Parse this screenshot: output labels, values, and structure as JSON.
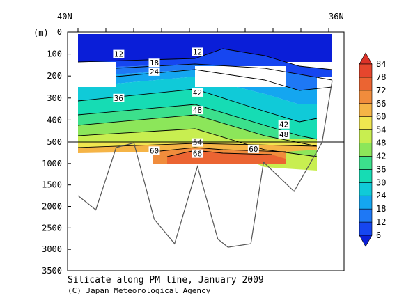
{
  "chart_data": {
    "type": "heatmap",
    "title": "Silicate along PM line, January 2009",
    "credit": "(C) Japan Meteorological Agency",
    "ylabel": "(m)",
    "x_ticks": [
      "40N",
      "36N"
    ],
    "y_ticks_upper": [
      "0",
      "100",
      "200",
      "300",
      "400",
      "500"
    ],
    "y_ticks_lower": [
      "1000",
      "1500",
      "2000",
      "2500",
      "3000",
      "3500"
    ],
    "ylim_upper": [
      0,
      500
    ],
    "ylim_lower": [
      500,
      3500
    ],
    "colorbar": {
      "levels": [
        6,
        12,
        18,
        24,
        30,
        36,
        42,
        48,
        54,
        60,
        66,
        72,
        78,
        84
      ],
      "colors": [
        "#0a1ed8",
        "#1646f0",
        "#1e78f5",
        "#14a6f0",
        "#10cad8",
        "#16dcb4",
        "#3ce08c",
        "#8ce65a",
        "#c8ee50",
        "#f0e650",
        "#f5b446",
        "#f08c3c",
        "#eb6432",
        "#e6462d",
        "#dc3228"
      ]
    },
    "contour_labels": [
      {
        "text": "12",
        "x_frac": 0.16,
        "depth": 100
      },
      {
        "text": "12",
        "x_frac": 0.47,
        "depth": 90
      },
      {
        "text": "18",
        "x_frac": 0.3,
        "depth": 140
      },
      {
        "text": "24",
        "x_frac": 0.3,
        "depth": 180
      },
      {
        "text": "36",
        "x_frac": 0.16,
        "depth": 300
      },
      {
        "text": "42",
        "x_frac": 0.47,
        "depth": 275
      },
      {
        "text": "48",
        "x_frac": 0.47,
        "depth": 355
      },
      {
        "text": "42",
        "x_frac": 0.81,
        "depth": 420
      },
      {
        "text": "48",
        "x_frac": 0.81,
        "depth": 465
      },
      {
        "text": "54",
        "x_frac": 0.47,
        "depth": 510
      },
      {
        "text": "60",
        "x_frac": 0.3,
        "depth": 700
      },
      {
        "text": "66",
        "x_frac": 0.47,
        "depth": 770
      },
      {
        "text": "60",
        "x_frac": 0.69,
        "depth": 660
      }
    ],
    "bottom_profile": [
      {
        "x_frac": 0.0,
        "depth": 1750
      },
      {
        "x_frac": 0.07,
        "depth": 2080
      },
      {
        "x_frac": 0.15,
        "depth": 630
      },
      {
        "x_frac": 0.22,
        "depth": 520
      },
      {
        "x_frac": 0.3,
        "depth": 2300
      },
      {
        "x_frac": 0.38,
        "depth": 2870
      },
      {
        "x_frac": 0.47,
        "depth": 1070
      },
      {
        "x_frac": 0.55,
        "depth": 2760
      },
      {
        "x_frac": 0.59,
        "depth": 2950
      },
      {
        "x_frac": 0.68,
        "depth": 2870
      },
      {
        "x_frac": 0.73,
        "depth": 970
      },
      {
        "x_frac": 0.85,
        "depth": 1650
      },
      {
        "x_frac": 0.96,
        "depth": 510
      },
      {
        "x_frac": 1.0,
        "depth": 220
      }
    ]
  }
}
